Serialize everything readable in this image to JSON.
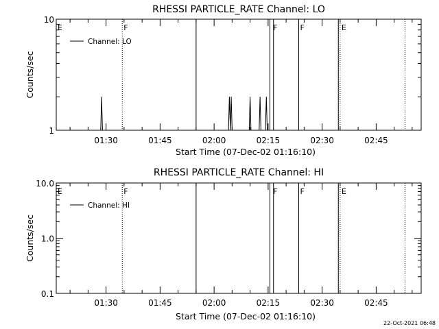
{
  "footer": "22-Oct-2021 06:48",
  "chart_data": [
    {
      "type": "line",
      "title": "RHESSI PARTICLE_RATE Channel: LO",
      "xlabel": "Start Time (07-Dec-02 01:16:10)",
      "ylabel": "Counts/sec",
      "y_scale": "log",
      "ylim": [
        1,
        10
      ],
      "y_ticks": [
        {
          "value": 1,
          "label": "1"
        },
        {
          "value": 10,
          "label": "10"
        }
      ],
      "x_ticks": [
        "01:30",
        "01:45",
        "02:00",
        "02:15",
        "02:30",
        "02:45"
      ],
      "legend": {
        "position": "top-left",
        "entries": [
          "Channel: LO"
        ]
      },
      "series": [
        {
          "name": "Channel: LO",
          "points": [
            {
              "t": "01:28:30",
              "v": 1
            },
            {
              "t": "01:28:45",
              "v": 2
            },
            {
              "t": "01:29:00",
              "v": 1
            },
            {
              "t": "02:04:00",
              "v": 1
            },
            {
              "t": "02:04:15",
              "v": 2
            },
            {
              "t": "02:04:30",
              "v": 1
            },
            {
              "t": "02:04:45",
              "v": 2
            },
            {
              "t": "02:05:00",
              "v": 1
            },
            {
              "t": "02:09:45",
              "v": 1
            },
            {
              "t": "02:10:00",
              "v": 2
            },
            {
              "t": "02:10:15",
              "v": 1
            },
            {
              "t": "02:12:30",
              "v": 1
            },
            {
              "t": "02:12:45",
              "v": 2
            },
            {
              "t": "02:13:00",
              "v": 1
            },
            {
              "t": "02:14:15",
              "v": 1
            },
            {
              "t": "02:14:30",
              "v": 2
            },
            {
              "t": "02:14:45",
              "v": 1
            }
          ]
        }
      ],
      "solid_lines": [
        "01:55:00",
        "02:15:30",
        "02:16:30",
        "02:23:30",
        "02:34:30"
      ],
      "dotted_lines": [
        "01:34:30",
        "02:35:00",
        "02:53:00"
      ],
      "markers": [
        {
          "t": "01:16:10",
          "label": "E"
        },
        {
          "t": "01:34:30",
          "label": "F"
        },
        {
          "t": "02:16:00",
          "label": "F"
        },
        {
          "t": "02:23:30",
          "label": "F"
        },
        {
          "t": "02:35:00",
          "label": "E"
        }
      ],
      "xlim": [
        "01:16:10",
        "02:57:30"
      ]
    },
    {
      "type": "line",
      "title": "RHESSI PARTICLE_RATE Channel: HI",
      "xlabel": "Start Time (07-Dec-02 01:16:10)",
      "ylabel": "Counts/sec",
      "y_scale": "log",
      "ylim": [
        0.1,
        10.0
      ],
      "y_ticks": [
        {
          "value": 0.1,
          "label": "0.1"
        },
        {
          "value": 1.0,
          "label": "1.0"
        },
        {
          "value": 10.0,
          "label": "10.0"
        }
      ],
      "x_ticks": [
        "01:30",
        "01:45",
        "02:00",
        "02:15",
        "02:30",
        "02:45"
      ],
      "legend": {
        "position": "top-left",
        "entries": [
          "Channel: HI"
        ]
      },
      "series": [
        {
          "name": "Channel: HI",
          "points": []
        }
      ],
      "solid_lines": [
        "01:55:00",
        "02:15:30",
        "02:16:30",
        "02:23:30",
        "02:34:30"
      ],
      "dotted_lines": [
        "01:34:30",
        "02:35:00",
        "02:53:00"
      ],
      "markers": [
        {
          "t": "01:16:10",
          "label": "E"
        },
        {
          "t": "01:34:30",
          "label": "F"
        },
        {
          "t": "02:16:00",
          "label": "F"
        },
        {
          "t": "02:23:30",
          "label": "F"
        },
        {
          "t": "02:35:00",
          "label": "E"
        }
      ],
      "xlim": [
        "01:16:10",
        "02:57:30"
      ]
    }
  ]
}
